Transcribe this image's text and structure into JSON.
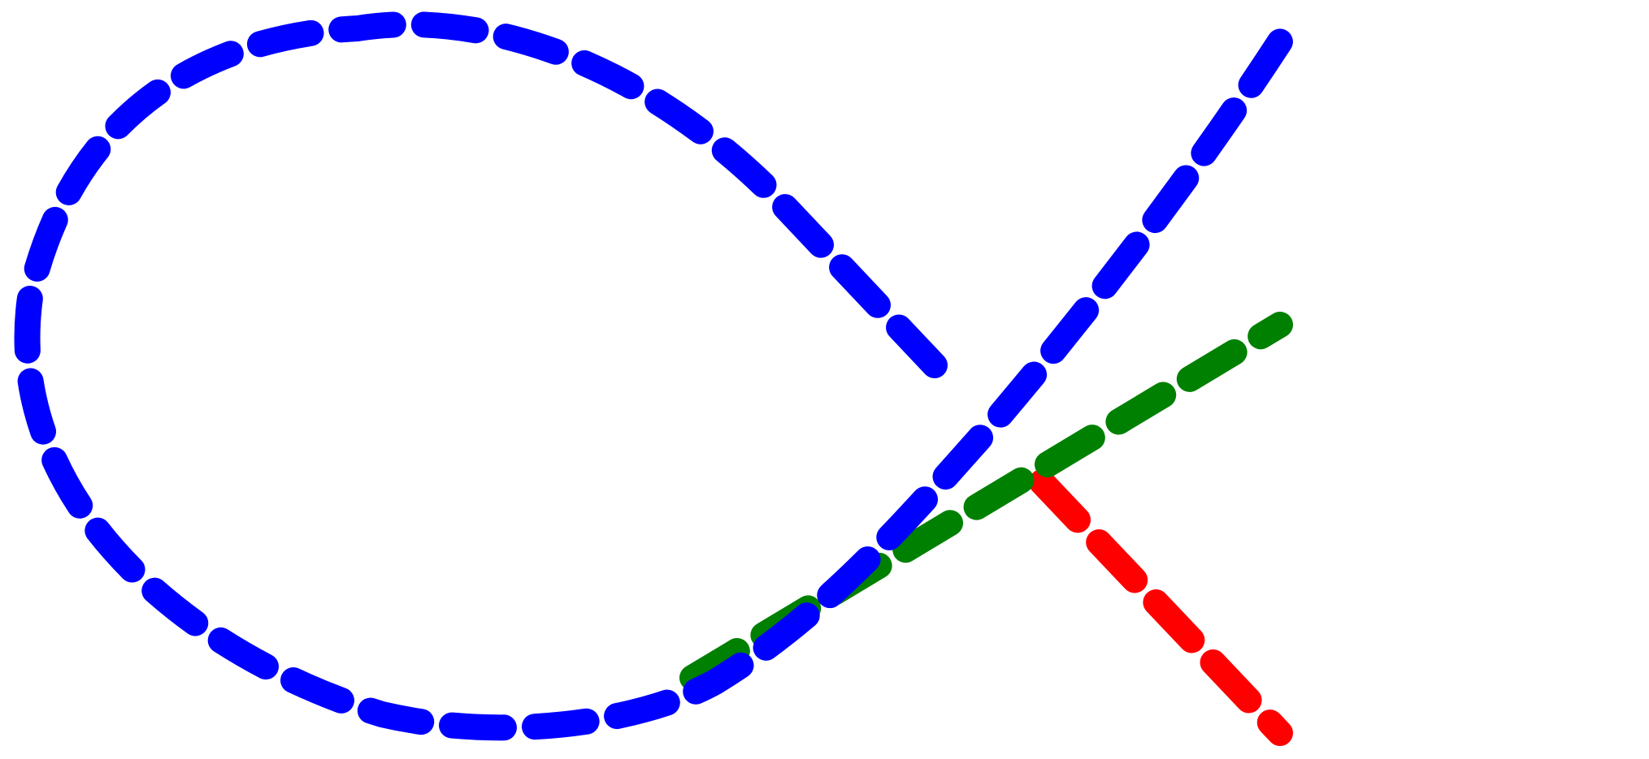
{
  "diagram": {
    "background_color": "#ffffff",
    "curves": [
      {
        "name": "red-dashed-line",
        "color": "#ff0000"
      },
      {
        "name": "green-dashed-line",
        "color": "#008000"
      },
      {
        "name": "blue-dashed-curve",
        "color": "#0000ff"
      }
    ]
  }
}
